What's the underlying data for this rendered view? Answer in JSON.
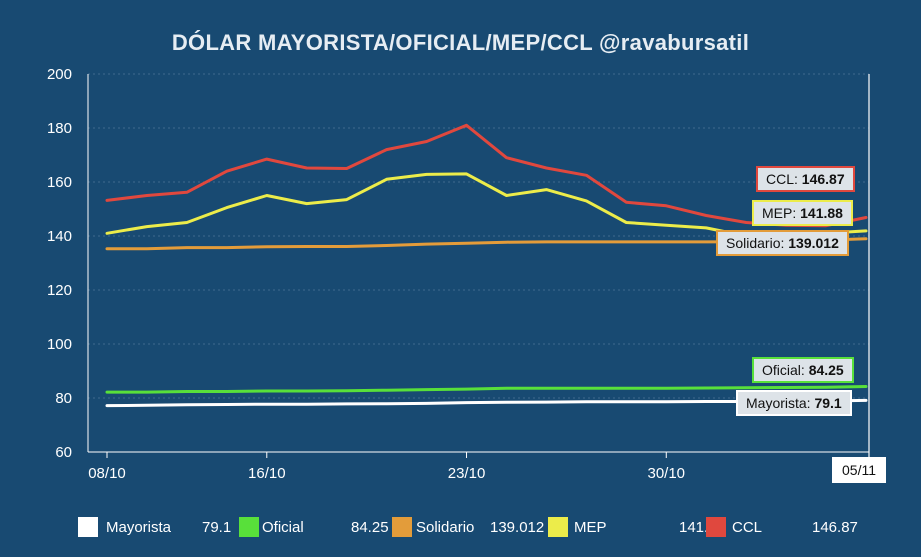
{
  "chart_data": {
    "type": "line",
    "title": "DÓLAR MAYORISTA/OFICIAL/MEP/CCL @ravabursatil",
    "xlabel": "",
    "ylabel": "",
    "ylim": [
      60,
      200
    ],
    "yticks": [
      "60",
      "80",
      "100",
      "120",
      "140",
      "160",
      "180",
      "200"
    ],
    "xticks": [
      "08/10",
      "16/10",
      "23/10",
      "30/10"
    ],
    "cursor_label": "05/11",
    "grid": true,
    "n_points": 20,
    "series": [
      {
        "name": "Mayorista",
        "color": "#ffffff",
        "last": "79.1",
        "values": [
          77.2,
          77.3,
          77.5,
          77.6,
          77.7,
          77.7,
          77.8,
          77.9,
          78.0,
          78.3,
          78.4,
          78.5,
          78.6,
          78.6,
          78.6,
          78.7,
          78.7,
          78.8,
          78.9,
          79.1
        ]
      },
      {
        "name": "Oficial",
        "color": "#58e03a",
        "last": "84.25",
        "values": [
          82.2,
          82.2,
          82.4,
          82.4,
          82.6,
          82.6,
          82.7,
          82.9,
          83.1,
          83.3,
          83.6,
          83.6,
          83.6,
          83.6,
          83.6,
          83.7,
          83.8,
          83.9,
          84.0,
          84.25
        ]
      },
      {
        "name": "Solidario",
        "color": "#e39c3a",
        "last": "139.012",
        "values": [
          135.3,
          135.3,
          135.7,
          135.7,
          136.0,
          136.1,
          136.1,
          136.5,
          137.0,
          137.3,
          137.7,
          137.8,
          137.8,
          137.8,
          137.8,
          137.8,
          137.9,
          138.1,
          138.5,
          139.012
        ]
      },
      {
        "name": "MEP",
        "color": "#ecec4a",
        "last": "141.88",
        "values": [
          141.0,
          143.5,
          145.0,
          150.5,
          155.0,
          152.0,
          153.5,
          161.0,
          162.8,
          163.0,
          155.0,
          157.2,
          153.0,
          145.0,
          144.0,
          143.0,
          140.0,
          140.5,
          141.0,
          141.88
        ]
      },
      {
        "name": "CCL",
        "color": "#e0483e",
        "last": "146.87",
        "values": [
          153.2,
          155.0,
          156.2,
          164.0,
          168.5,
          165.2,
          165.0,
          172.0,
          175.0,
          181.0,
          169.0,
          165.2,
          162.5,
          152.5,
          151.2,
          147.6,
          145.0,
          144.0,
          143.8,
          146.87
        ]
      }
    ]
  },
  "tooltips": {
    "ccl": {
      "label": "CCL:",
      "value": "146.87"
    },
    "mep": {
      "label": "MEP:",
      "value": "141.88"
    },
    "solidario": {
      "label": "Solidario:",
      "value": "139.012"
    },
    "oficial": {
      "label": "Oficial:",
      "value": "84.25"
    },
    "mayorista": {
      "label": "Mayorista:",
      "value": "79.1"
    }
  }
}
